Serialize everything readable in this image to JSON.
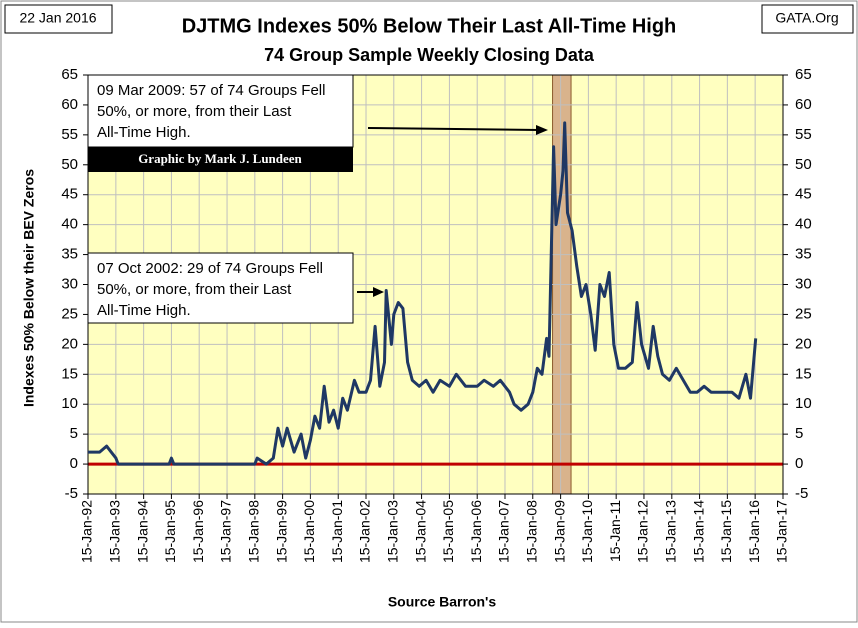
{
  "chart_data": {
    "type": "line",
    "title": "DJTMG Indexes 50% Below Their Last All-Time High",
    "subtitle": "74 Group Sample Weekly Closing Data",
    "date_label": "22 Jan 2016",
    "source_site": "GATA.Org",
    "y_label": "Indexes 50%  Below  their BEV Zeros",
    "x_label": "Source Barron's",
    "color": "#1f3864",
    "zero_line_color": "#c00000",
    "plot_background": "#ffffc0",
    "highlight_range": [
      "2008-10-01",
      "2009-06-01"
    ],
    "highlight_color": "#d9b38c",
    "annotations": [
      {
        "lines": [
          "09 Mar 2009: 57 of 74 Groups Fell",
          "50%, or more, from their Last",
          "All-Time High."
        ]
      },
      {
        "lines": [
          "07 Oct 2002: 29 of 74 Groups Fell",
          "50%, or more, from their Last",
          "All-Time High."
        ]
      }
    ],
    "credit": "Graphic by Mark J. Lundeen",
    "xlim": [
      "1992-01-15",
      "2017-01-15"
    ],
    "xticks": [
      {
        "value": "1992-01-15",
        "label": "15-Jan-92"
      },
      {
        "value": "1993-01-15",
        "label": "15-Jan-93"
      },
      {
        "value": "1994-01-15",
        "label": "15-Jan-94"
      },
      {
        "value": "1995-01-15",
        "label": "15-Jan-95"
      },
      {
        "value": "1996-01-15",
        "label": "15-Jan-96"
      },
      {
        "value": "1997-01-15",
        "label": "15-Jan-97"
      },
      {
        "value": "1998-01-15",
        "label": "15-Jan-98"
      },
      {
        "value": "1999-01-15",
        "label": "15-Jan-99"
      },
      {
        "value": "2000-01-15",
        "label": "15-Jan-00"
      },
      {
        "value": "2001-01-15",
        "label": "15-Jan-01"
      },
      {
        "value": "2002-01-15",
        "label": "15-Jan-02"
      },
      {
        "value": "2003-01-15",
        "label": "15-Jan-03"
      },
      {
        "value": "2004-01-15",
        "label": "15-Jan-04"
      },
      {
        "value": "2005-01-15",
        "label": "15-Jan-05"
      },
      {
        "value": "2006-01-15",
        "label": "15-Jan-06"
      },
      {
        "value": "2007-01-15",
        "label": "15-Jan-07"
      },
      {
        "value": "2008-01-15",
        "label": "15-Jan-08"
      },
      {
        "value": "2009-01-15",
        "label": "15-Jan-09"
      },
      {
        "value": "2010-01-15",
        "label": "15-Jan-10"
      },
      {
        "value": "2011-01-15",
        "label": "15-Jan-11"
      },
      {
        "value": "2012-01-15",
        "label": "15-Jan-12"
      },
      {
        "value": "2013-01-15",
        "label": "15-Jan-13"
      },
      {
        "value": "2014-01-15",
        "label": "15-Jan-14"
      },
      {
        "value": "2015-01-15",
        "label": "15-Jan-15"
      },
      {
        "value": "2016-01-15",
        "label": "15-Jan-16"
      },
      {
        "value": "2017-01-15",
        "label": "15-Jan-17"
      }
    ],
    "ylim": [
      -5,
      65
    ],
    "yticks": [
      -5,
      0,
      5,
      10,
      15,
      20,
      25,
      30,
      35,
      40,
      45,
      50,
      55,
      60,
      65
    ],
    "y2lim": [
      -5,
      65
    ],
    "y2ticks": [
      -5,
      0,
      5,
      10,
      15,
      20,
      25,
      30,
      35,
      40,
      45,
      50,
      55,
      60,
      65
    ],
    "x": [
      "1992-01-15",
      "1992-06-15",
      "1992-09-15",
      "1992-11-15",
      "1993-01-15",
      "1993-02-15",
      "1994-12-15",
      "1995-01-15",
      "1995-02-15",
      "1998-01-15",
      "1998-02-15",
      "1998-06-15",
      "1998-09-15",
      "1998-11-15",
      "1999-01-15",
      "1999-03-15",
      "1999-06-15",
      "1999-09-15",
      "1999-11-15",
      "2000-01-15",
      "2000-03-15",
      "2000-05-15",
      "2000-07-15",
      "2000-09-15",
      "2000-11-15",
      "2001-01-15",
      "2001-03-15",
      "2001-05-15",
      "2001-08-15",
      "2001-10-15",
      "2002-01-15",
      "2002-03-15",
      "2002-05-15",
      "2002-07-15",
      "2002-09-15",
      "2002-10-07",
      "2002-12-15",
      "2003-01-15",
      "2003-03-15",
      "2003-05-15",
      "2003-07-15",
      "2003-09-15",
      "2003-12-15",
      "2004-03-15",
      "2004-06-15",
      "2004-09-15",
      "2005-01-15",
      "2005-04-15",
      "2005-08-15",
      "2006-01-15",
      "2006-04-15",
      "2006-08-15",
      "2006-11-15",
      "2007-03-15",
      "2007-05-15",
      "2007-08-15",
      "2007-11-15",
      "2008-01-15",
      "2008-03-15",
      "2008-05-15",
      "2008-07-15",
      "2008-08-15",
      "2008-10-15",
      "2008-11-15",
      "2009-01-15",
      "2009-02-15",
      "2009-03-09",
      "2009-04-15",
      "2009-06-15",
      "2009-08-15",
      "2009-10-15",
      "2009-12-15",
      "2010-02-15",
      "2010-04-15",
      "2010-06-15",
      "2010-08-15",
      "2010-10-15",
      "2010-12-15",
      "2011-02-15",
      "2011-05-15",
      "2011-08-15",
      "2011-10-15",
      "2011-12-15",
      "2012-03-15",
      "2012-05-15",
      "2012-07-15",
      "2012-09-15",
      "2012-12-15",
      "2013-03-15",
      "2013-06-15",
      "2013-09-15",
      "2013-12-15",
      "2014-03-15",
      "2014-06-15",
      "2014-09-15",
      "2014-12-15",
      "2015-03-15",
      "2015-06-15",
      "2015-09-15",
      "2015-11-15",
      "2016-01-22"
    ],
    "values": [
      2,
      2,
      3,
      2,
      1,
      0,
      0,
      1,
      0,
      0,
      1,
      0,
      1,
      6,
      3,
      6,
      2,
      5,
      1,
      4,
      8,
      6,
      13,
      7,
      9,
      6,
      11,
      9,
      14,
      12,
      12,
      14,
      23,
      13,
      17,
      29,
      20,
      25,
      27,
      26,
      17,
      14,
      13,
      14,
      12,
      14,
      13,
      15,
      13,
      13,
      14,
      13,
      14,
      12,
      10,
      9,
      10,
      12,
      16,
      15,
      21,
      18,
      53,
      40,
      45,
      49,
      57,
      42,
      39,
      33,
      28,
      30,
      25,
      19,
      30,
      28,
      32,
      20,
      16,
      16,
      17,
      27,
      20,
      16,
      23,
      18,
      15,
      14,
      16,
      14,
      12,
      12,
      13,
      12,
      12,
      12,
      12,
      11,
      15,
      11,
      21
    ]
  }
}
